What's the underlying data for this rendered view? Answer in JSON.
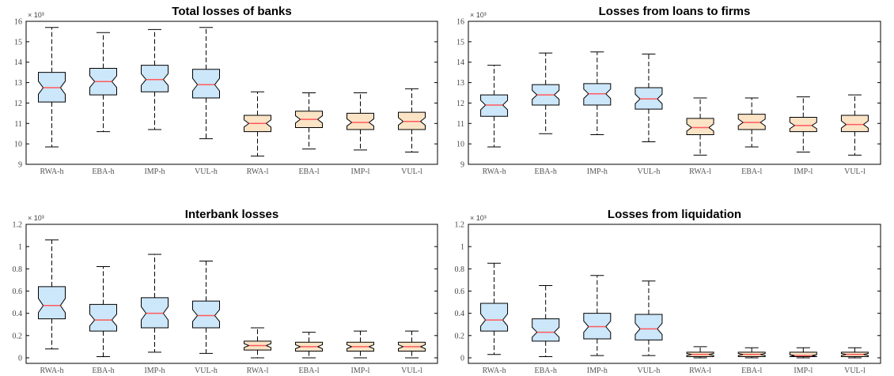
{
  "colors": {
    "high_box": "#cce6fa",
    "low_box": "#fbe3c6",
    "median": "#ff5a5a",
    "axis": "#000000"
  },
  "chart_data": [
    {
      "type": "box",
      "title": "Total losses of banks",
      "multiplier": "× 10³",
      "ylim": [
        9,
        16
      ],
      "yticks": [
        "9",
        "10",
        "11",
        "12",
        "13",
        "14",
        "15",
        "16"
      ],
      "categories": [
        "RWA-h",
        "EBA-h",
        "IMP-h",
        "VUL-h",
        "RWA-l",
        "EBA-l",
        "IMP-l",
        "VUL-l"
      ],
      "box_color_groups": [
        "high",
        "high",
        "high",
        "high",
        "low",
        "low",
        "low",
        "low"
      ],
      "boxes": [
        {
          "whisker_low": 9.85,
          "q1": 12.05,
          "median": 12.75,
          "q3": 13.5,
          "whisker_high": 15.7
        },
        {
          "whisker_low": 10.6,
          "q1": 12.4,
          "median": 13.05,
          "q3": 13.7,
          "whisker_high": 15.45
        },
        {
          "whisker_low": 10.7,
          "q1": 12.55,
          "median": 13.15,
          "q3": 13.85,
          "whisker_high": 15.6
        },
        {
          "whisker_low": 10.25,
          "q1": 12.25,
          "median": 12.9,
          "q3": 13.65,
          "whisker_high": 15.7
        },
        {
          "whisker_low": 9.4,
          "q1": 10.6,
          "median": 11.0,
          "q3": 11.4,
          "whisker_high": 12.55
        },
        {
          "whisker_low": 9.75,
          "q1": 10.8,
          "median": 11.2,
          "q3": 11.6,
          "whisker_high": 12.5
        },
        {
          "whisker_low": 9.7,
          "q1": 10.7,
          "median": 11.05,
          "q3": 11.5,
          "whisker_high": 12.5
        },
        {
          "whisker_low": 9.6,
          "q1": 10.7,
          "median": 11.1,
          "q3": 11.55,
          "whisker_high": 12.7
        }
      ]
    },
    {
      "type": "box",
      "title": "Losses from loans to firms",
      "multiplier": "× 10³",
      "ylim": [
        9,
        16
      ],
      "yticks": [
        "9",
        "10",
        "11",
        "12",
        "13",
        "14",
        "15",
        "16"
      ],
      "categories": [
        "RWA-h",
        "EBA-h",
        "IMP-h",
        "VUL-h",
        "RWA-l",
        "EBA-l",
        "IMP-l",
        "VUL-l"
      ],
      "box_color_groups": [
        "high",
        "high",
        "high",
        "high",
        "low",
        "low",
        "low",
        "low"
      ],
      "boxes": [
        {
          "whisker_low": 9.85,
          "q1": 11.35,
          "median": 11.9,
          "q3": 12.4,
          "whisker_high": 13.85
        },
        {
          "whisker_low": 10.5,
          "q1": 11.9,
          "median": 12.4,
          "q3": 12.9,
          "whisker_high": 14.45
        },
        {
          "whisker_low": 10.45,
          "q1": 11.9,
          "median": 12.45,
          "q3": 12.95,
          "whisker_high": 14.5
        },
        {
          "whisker_low": 10.1,
          "q1": 11.7,
          "median": 12.2,
          "q3": 12.75,
          "whisker_high": 14.4
        },
        {
          "whisker_low": 9.45,
          "q1": 10.45,
          "median": 10.8,
          "q3": 11.25,
          "whisker_high": 12.25
        },
        {
          "whisker_low": 9.85,
          "q1": 10.7,
          "median": 11.05,
          "q3": 11.45,
          "whisker_high": 12.25
        },
        {
          "whisker_low": 9.6,
          "q1": 10.6,
          "median": 10.9,
          "q3": 11.3,
          "whisker_high": 12.3
        },
        {
          "whisker_low": 9.45,
          "q1": 10.6,
          "median": 10.95,
          "q3": 11.4,
          "whisker_high": 12.4
        }
      ]
    },
    {
      "type": "box",
      "title": "Interbank losses",
      "multiplier": "× 10³",
      "ylim": [
        -0.05,
        1.2
      ],
      "yticks": [
        "0",
        "0.2",
        "0.4",
        "0.6",
        "0.8",
        "1",
        "1.2"
      ],
      "categories": [
        "RWA-h",
        "EBA-h",
        "IMP-h",
        "VUL-h",
        "RWA-l",
        "EBA-l",
        "IMP-l",
        "VUL-l"
      ],
      "box_color_groups": [
        "high",
        "high",
        "high",
        "high",
        "low",
        "low",
        "low",
        "low"
      ],
      "boxes": [
        {
          "whisker_low": 0.08,
          "q1": 0.35,
          "median": 0.47,
          "q3": 0.64,
          "whisker_high": 1.06
        },
        {
          "whisker_low": 0.01,
          "q1": 0.24,
          "median": 0.34,
          "q3": 0.48,
          "whisker_high": 0.82
        },
        {
          "whisker_low": 0.05,
          "q1": 0.27,
          "median": 0.4,
          "q3": 0.54,
          "whisker_high": 0.93
        },
        {
          "whisker_low": 0.04,
          "q1": 0.27,
          "median": 0.38,
          "q3": 0.51,
          "whisker_high": 0.87
        },
        {
          "whisker_low": 0.0,
          "q1": 0.07,
          "median": 0.11,
          "q3": 0.15,
          "whisker_high": 0.27
        },
        {
          "whisker_low": 0.0,
          "q1": 0.06,
          "median": 0.1,
          "q3": 0.14,
          "whisker_high": 0.23
        },
        {
          "whisker_low": 0.0,
          "q1": 0.06,
          "median": 0.1,
          "q3": 0.14,
          "whisker_high": 0.24
        },
        {
          "whisker_low": 0.0,
          "q1": 0.06,
          "median": 0.1,
          "q3": 0.14,
          "whisker_high": 0.24
        }
      ]
    },
    {
      "type": "box",
      "title": "Losses from liquidation",
      "multiplier": "× 10³",
      "ylim": [
        -0.05,
        1.2
      ],
      "yticks": [
        "0",
        "0.2",
        "0.4",
        "0.6",
        "0.8",
        "1",
        "1.2"
      ],
      "categories": [
        "RWA-h",
        "EBA-h",
        "IMP-h",
        "VUL-h",
        "RWA-l",
        "EBA-l",
        "IMP-l",
        "VUL-l"
      ],
      "box_color_groups": [
        "high",
        "high",
        "high",
        "high",
        "low",
        "low",
        "low",
        "low"
      ],
      "boxes": [
        {
          "whisker_low": 0.03,
          "q1": 0.24,
          "median": 0.34,
          "q3": 0.49,
          "whisker_high": 0.85
        },
        {
          "whisker_low": 0.01,
          "q1": 0.15,
          "median": 0.23,
          "q3": 0.35,
          "whisker_high": 0.65
        },
        {
          "whisker_low": 0.02,
          "q1": 0.17,
          "median": 0.28,
          "q3": 0.4,
          "whisker_high": 0.74
        },
        {
          "whisker_low": 0.02,
          "q1": 0.16,
          "median": 0.26,
          "q3": 0.39,
          "whisker_high": 0.69
        },
        {
          "whisker_low": 0.0,
          "q1": 0.01,
          "median": 0.03,
          "q3": 0.05,
          "whisker_high": 0.1
        },
        {
          "whisker_low": 0.0,
          "q1": 0.01,
          "median": 0.03,
          "q3": 0.05,
          "whisker_high": 0.09
        },
        {
          "whisker_low": 0.0,
          "q1": 0.01,
          "median": 0.02,
          "q3": 0.05,
          "whisker_high": 0.09
        },
        {
          "whisker_low": 0.0,
          "q1": 0.01,
          "median": 0.03,
          "q3": 0.05,
          "whisker_high": 0.09
        }
      ]
    }
  ]
}
